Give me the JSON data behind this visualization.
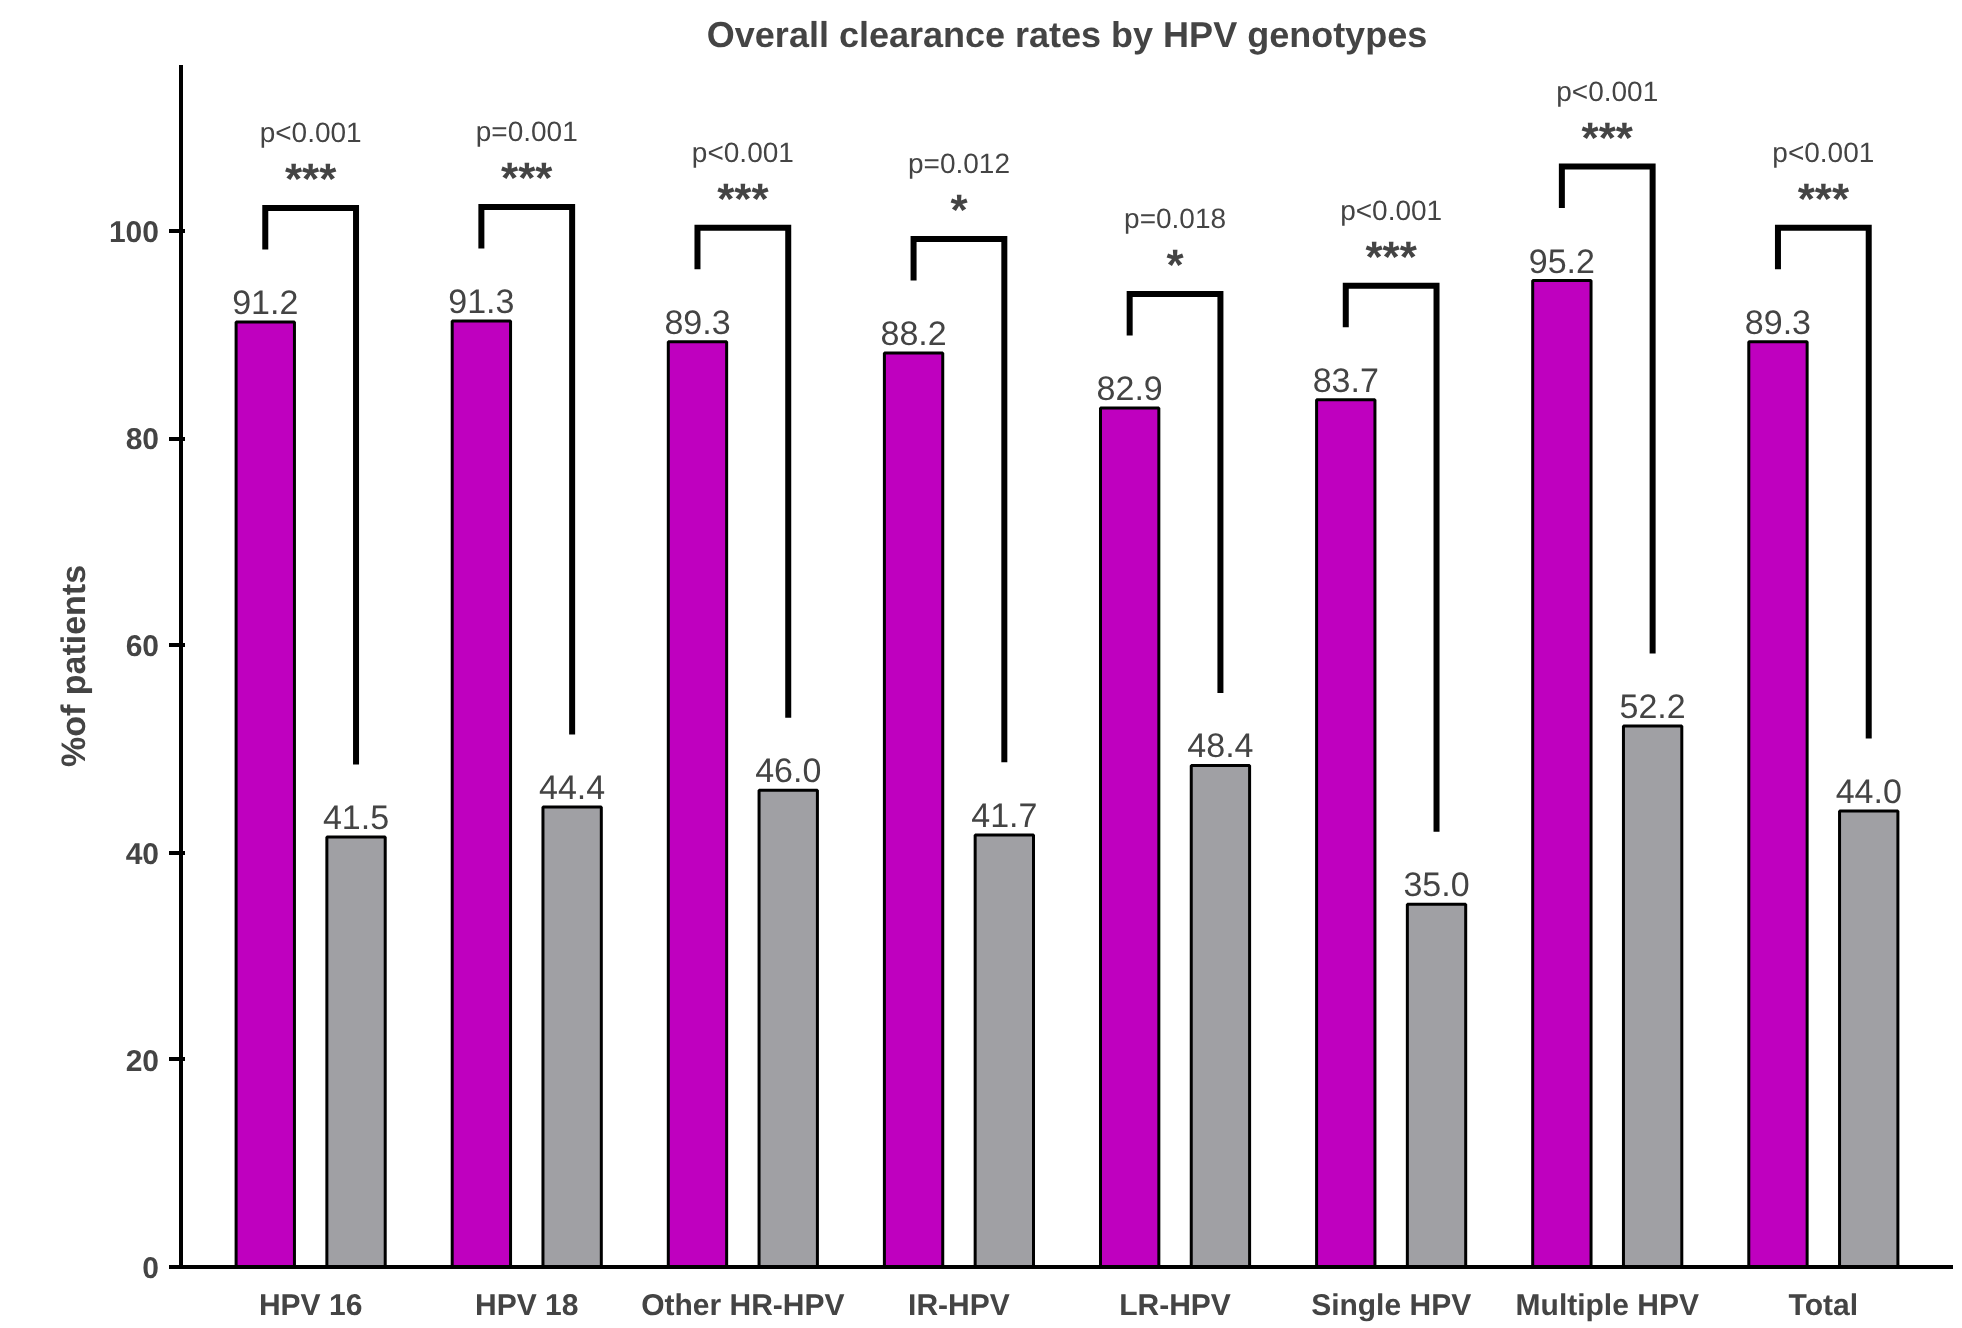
{
  "chart_data": {
    "type": "bar",
    "title": "Overall clearance rates by HPV genotypes",
    "ylabel": "%of patients",
    "categories": [
      "HPV 16",
      "HPV 18",
      "Other HR-HPV",
      "IR-HPV",
      "LR-HPV",
      "Single HPV",
      "Multiple HPV",
      "Total"
    ],
    "series": [
      {
        "color": "#bf00bf",
        "values": [
          91.2,
          91.3,
          89.3,
          88.2,
          82.9,
          83.7,
          95.2,
          89.3
        ],
        "value_labels": [
          "91.2",
          "91.3",
          "89.3",
          "88.2",
          "82.9",
          "83.7",
          "95.2",
          "89.3"
        ]
      },
      {
        "color": "#a0a0a4",
        "values": [
          41.5,
          44.4,
          46.0,
          41.7,
          48.4,
          35.0,
          52.2,
          44.0
        ],
        "value_labels": [
          "41.5",
          "44.4",
          "46.0",
          "41.7",
          "48.4",
          "35.0",
          "52.2",
          "44.0"
        ]
      }
    ],
    "ylim": [
      0,
      116
    ],
    "yticks": [
      0,
      20,
      40,
      60,
      80,
      100
    ],
    "grid": false,
    "annotations": [
      "p<0.001",
      "***",
      "p=0.001",
      "***",
      "p<0.001",
      "***",
      "p=0.012",
      "*",
      "p=0.018",
      "*",
      "p<0.001",
      "***",
      "p<0.001",
      "***",
      "p<0.001",
      "***"
    ]
  }
}
